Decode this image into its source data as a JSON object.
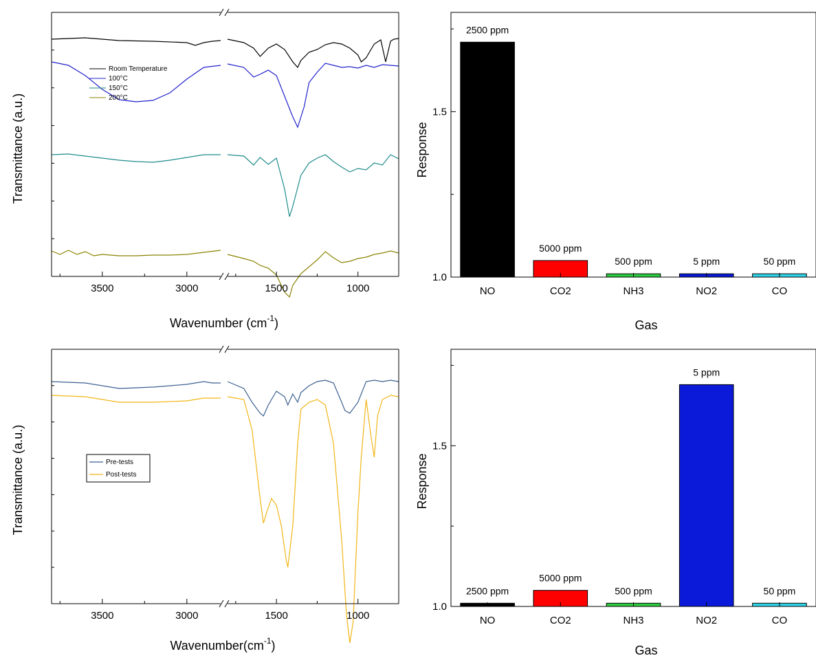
{
  "panels": {
    "ftir_top": {
      "xlabel": "Wavenumber (cm",
      "xlabel_sup": "-1",
      "xlabel_end": ")",
      "ylabel": "Transmittance (a.u.)",
      "legend": [
        "Room Temperature",
        "100°C",
        "150°C",
        "200°C"
      ]
    },
    "ftir_bottom": {
      "xlabel": "Wavenumber(cm",
      "xlabel_sup": "-1",
      "xlabel_end": ")",
      "ylabel": "Transmittance (a.u.)",
      "legend": [
        "Pre-tests",
        "Post-tests"
      ]
    },
    "bar_top": {
      "xlabel": "Gas",
      "ylabel": "Response"
    },
    "bar_bottom": {
      "xlabel": "Gas",
      "ylabel": "Response"
    }
  },
  "chart_data": [
    {
      "type": "line",
      "xlabel": "Wavenumber (cm-1)",
      "ylabel": "Transmittance (a.u.)",
      "x_reversed": true,
      "x_break": [
        2800,
        1800
      ],
      "x_ticks": [
        3500,
        3000,
        1500,
        1000
      ],
      "xlim_left": [
        3800,
        2800
      ],
      "xlim_right": [
        1800,
        750
      ],
      "grid": false,
      "legend_position": "upper-left",
      "series": [
        {
          "name": "Room Temperature",
          "color": "#000000",
          "x": [
            3800,
            3600,
            3400,
            3200,
            3000,
            2950,
            2900,
            2850,
            2800,
            1800,
            1700,
            1640,
            1600,
            1550,
            1500,
            1450,
            1400,
            1370,
            1350,
            1300,
            1250,
            1200,
            1150,
            1100,
            1050,
            1000,
            980,
            950,
            900,
            860,
            830,
            800,
            780,
            750
          ],
          "y": [
            0.93,
            0.95,
            0.91,
            0.9,
            0.88,
            0.84,
            0.88,
            0.9,
            0.91,
            0.93,
            0.88,
            0.8,
            0.68,
            0.8,
            0.86,
            0.78,
            0.6,
            0.52,
            0.62,
            0.74,
            0.78,
            0.85,
            0.88,
            0.86,
            0.8,
            0.7,
            0.6,
            0.66,
            0.86,
            0.92,
            0.6,
            0.9,
            0.93,
            0.94
          ]
        },
        {
          "name": "100°C",
          "color": "#2020cc",
          "x": [
            3800,
            3700,
            3600,
            3500,
            3400,
            3300,
            3200,
            3100,
            3000,
            2900,
            2800,
            1800,
            1700,
            1640,
            1600,
            1550,
            1500,
            1450,
            1400,
            1370,
            1330,
            1300,
            1250,
            1200,
            1150,
            1100,
            1050,
            1000,
            950,
            900,
            850,
            800,
            750
          ],
          "y": [
            0.6,
            0.55,
            0.4,
            0.2,
            0.05,
            0.02,
            0.04,
            0.15,
            0.35,
            0.52,
            0.55,
            0.57,
            0.52,
            0.38,
            0.42,
            0.48,
            0.4,
            0.1,
            -0.2,
            -0.35,
            -0.05,
            0.3,
            0.45,
            0.58,
            0.55,
            0.52,
            0.53,
            0.51,
            0.55,
            0.52,
            0.56,
            0.55,
            0.54
          ]
        },
        {
          "name": "150°C",
          "color": "#1e8a8a",
          "x": [
            3800,
            3700,
            3600,
            3500,
            3400,
            3300,
            3200,
            3100,
            3000,
            2900,
            2800,
            1800,
            1700,
            1640,
            1600,
            1550,
            1500,
            1450,
            1420,
            1400,
            1350,
            1300,
            1250,
            1200,
            1150,
            1100,
            1050,
            1000,
            950,
            900,
            850,
            800,
            750
          ],
          "y": [
            0.2,
            0.21,
            0.18,
            0.15,
            0.12,
            0.1,
            0.09,
            0.12,
            0.16,
            0.2,
            0.2,
            0.2,
            0.18,
            0.05,
            0.16,
            0.06,
            0.15,
            -0.3,
            -0.7,
            -0.55,
            -0.1,
            0.08,
            0.15,
            0.2,
            0.1,
            0.02,
            -0.05,
            0.0,
            -0.02,
            0.08,
            0.05,
            0.2,
            0.14
          ]
        },
        {
          "name": "200°C",
          "color": "#8a8200",
          "x": [
            3800,
            3750,
            3700,
            3650,
            3600,
            3550,
            3500,
            3400,
            3300,
            3200,
            3100,
            3000,
            2900,
            2800,
            1800,
            1700,
            1640,
            1600,
            1550,
            1500,
            1450,
            1420,
            1400,
            1350,
            1300,
            1250,
            1200,
            1150,
            1100,
            1050,
            1000,
            950,
            900,
            850,
            800,
            750
          ],
          "y": [
            -0.45,
            -0.5,
            -0.44,
            -0.5,
            -0.46,
            -0.52,
            -0.5,
            -0.52,
            -0.52,
            -0.51,
            -0.51,
            -0.5,
            -0.47,
            -0.44,
            -0.5,
            -0.56,
            -0.6,
            -0.66,
            -0.7,
            -0.8,
            -1.05,
            -1.12,
            -0.95,
            -0.78,
            -0.68,
            -0.58,
            -0.46,
            -0.55,
            -0.62,
            -0.6,
            -0.56,
            -0.54,
            -0.5,
            -0.48,
            -0.45,
            -0.48
          ]
        }
      ]
    },
    {
      "type": "bar",
      "categories": [
        "NO",
        "CO2",
        "NH3",
        "NO2",
        "CO"
      ],
      "values": [
        1.71,
        1.05,
        1.01,
        1.01,
        1.01
      ],
      "labels": [
        "2500 ppm",
        "5000 ppm",
        "500 ppm",
        "5 ppm",
        "50 ppm"
      ],
      "colors": [
        "#000000",
        "#ff0000",
        "#2ecc40",
        "#0a1ad8",
        "#2fd4e8"
      ],
      "xlabel": "Gas",
      "ylabel": "Response",
      "ylim": [
        1.0,
        1.8
      ],
      "y_ticks": [
        1.0,
        1.5
      ]
    },
    {
      "type": "line",
      "xlabel": "Wavenumber(cm-1)",
      "ylabel": "Transmittance (a.u.)",
      "x_reversed": true,
      "x_break": [
        2800,
        1800
      ],
      "x_ticks": [
        3500,
        3000,
        1500,
        1000
      ],
      "xlim_left": [
        3800,
        2800
      ],
      "xlim_right": [
        1800,
        750
      ],
      "grid": false,
      "legend_position": "middle-left",
      "series": [
        {
          "name": "Pre-tests",
          "color": "#3a5f8f",
          "x": [
            3800,
            3600,
            3400,
            3200,
            3000,
            2900,
            2850,
            2800,
            1800,
            1700,
            1650,
            1600,
            1580,
            1550,
            1500,
            1450,
            1430,
            1400,
            1370,
            1350,
            1300,
            1250,
            1200,
            1150,
            1100,
            1080,
            1050,
            1000,
            950,
            900,
            850,
            800,
            750
          ],
          "y": [
            0.95,
            0.94,
            0.9,
            0.91,
            0.93,
            0.95,
            0.94,
            0.94,
            0.95,
            0.9,
            0.8,
            0.72,
            0.7,
            0.78,
            0.88,
            0.84,
            0.78,
            0.86,
            0.8,
            0.87,
            0.92,
            0.95,
            0.96,
            0.94,
            0.8,
            0.74,
            0.72,
            0.8,
            0.95,
            0.96,
            0.95,
            0.96,
            0.95
          ]
        },
        {
          "name": "Post-tests",
          "color": "#f2b516",
          "x": [
            3800,
            3600,
            3400,
            3200,
            3000,
            2900,
            2850,
            2800,
            1800,
            1700,
            1650,
            1600,
            1580,
            1560,
            1530,
            1500,
            1470,
            1440,
            1430,
            1400,
            1370,
            1350,
            1300,
            1250,
            1200,
            1150,
            1100,
            1070,
            1050,
            1030,
            1000,
            980,
            950,
            920,
            900,
            880,
            850,
            800,
            750
          ],
          "y": [
            0.85,
            0.84,
            0.8,
            0.8,
            0.81,
            0.83,
            0.83,
            0.83,
            0.84,
            0.82,
            0.6,
            0.1,
            -0.08,
            0.0,
            0.1,
            0.05,
            -0.1,
            -0.35,
            -0.4,
            -0.1,
            0.5,
            0.75,
            0.8,
            0.82,
            0.78,
            0.5,
            -0.2,
            -0.75,
            -0.95,
            -0.8,
            0.0,
            0.4,
            0.82,
            0.55,
            0.4,
            0.7,
            0.82,
            0.85,
            0.84
          ]
        }
      ]
    },
    {
      "type": "bar",
      "categories": [
        "NO",
        "CO2",
        "NH3",
        "NO2",
        "CO"
      ],
      "values": [
        1.01,
        1.05,
        1.01,
        1.69,
        1.01
      ],
      "labels": [
        "2500 ppm",
        "5000 ppm",
        "500 ppm",
        "5 ppm",
        "50 ppm"
      ],
      "colors": [
        "#000000",
        "#ff0000",
        "#2ecc40",
        "#0a1ad8",
        "#2fd4e8"
      ],
      "xlabel": "Gas",
      "ylabel": "Response",
      "ylim": [
        1.0,
        1.8
      ],
      "y_ticks": [
        1.0,
        1.5
      ]
    }
  ]
}
